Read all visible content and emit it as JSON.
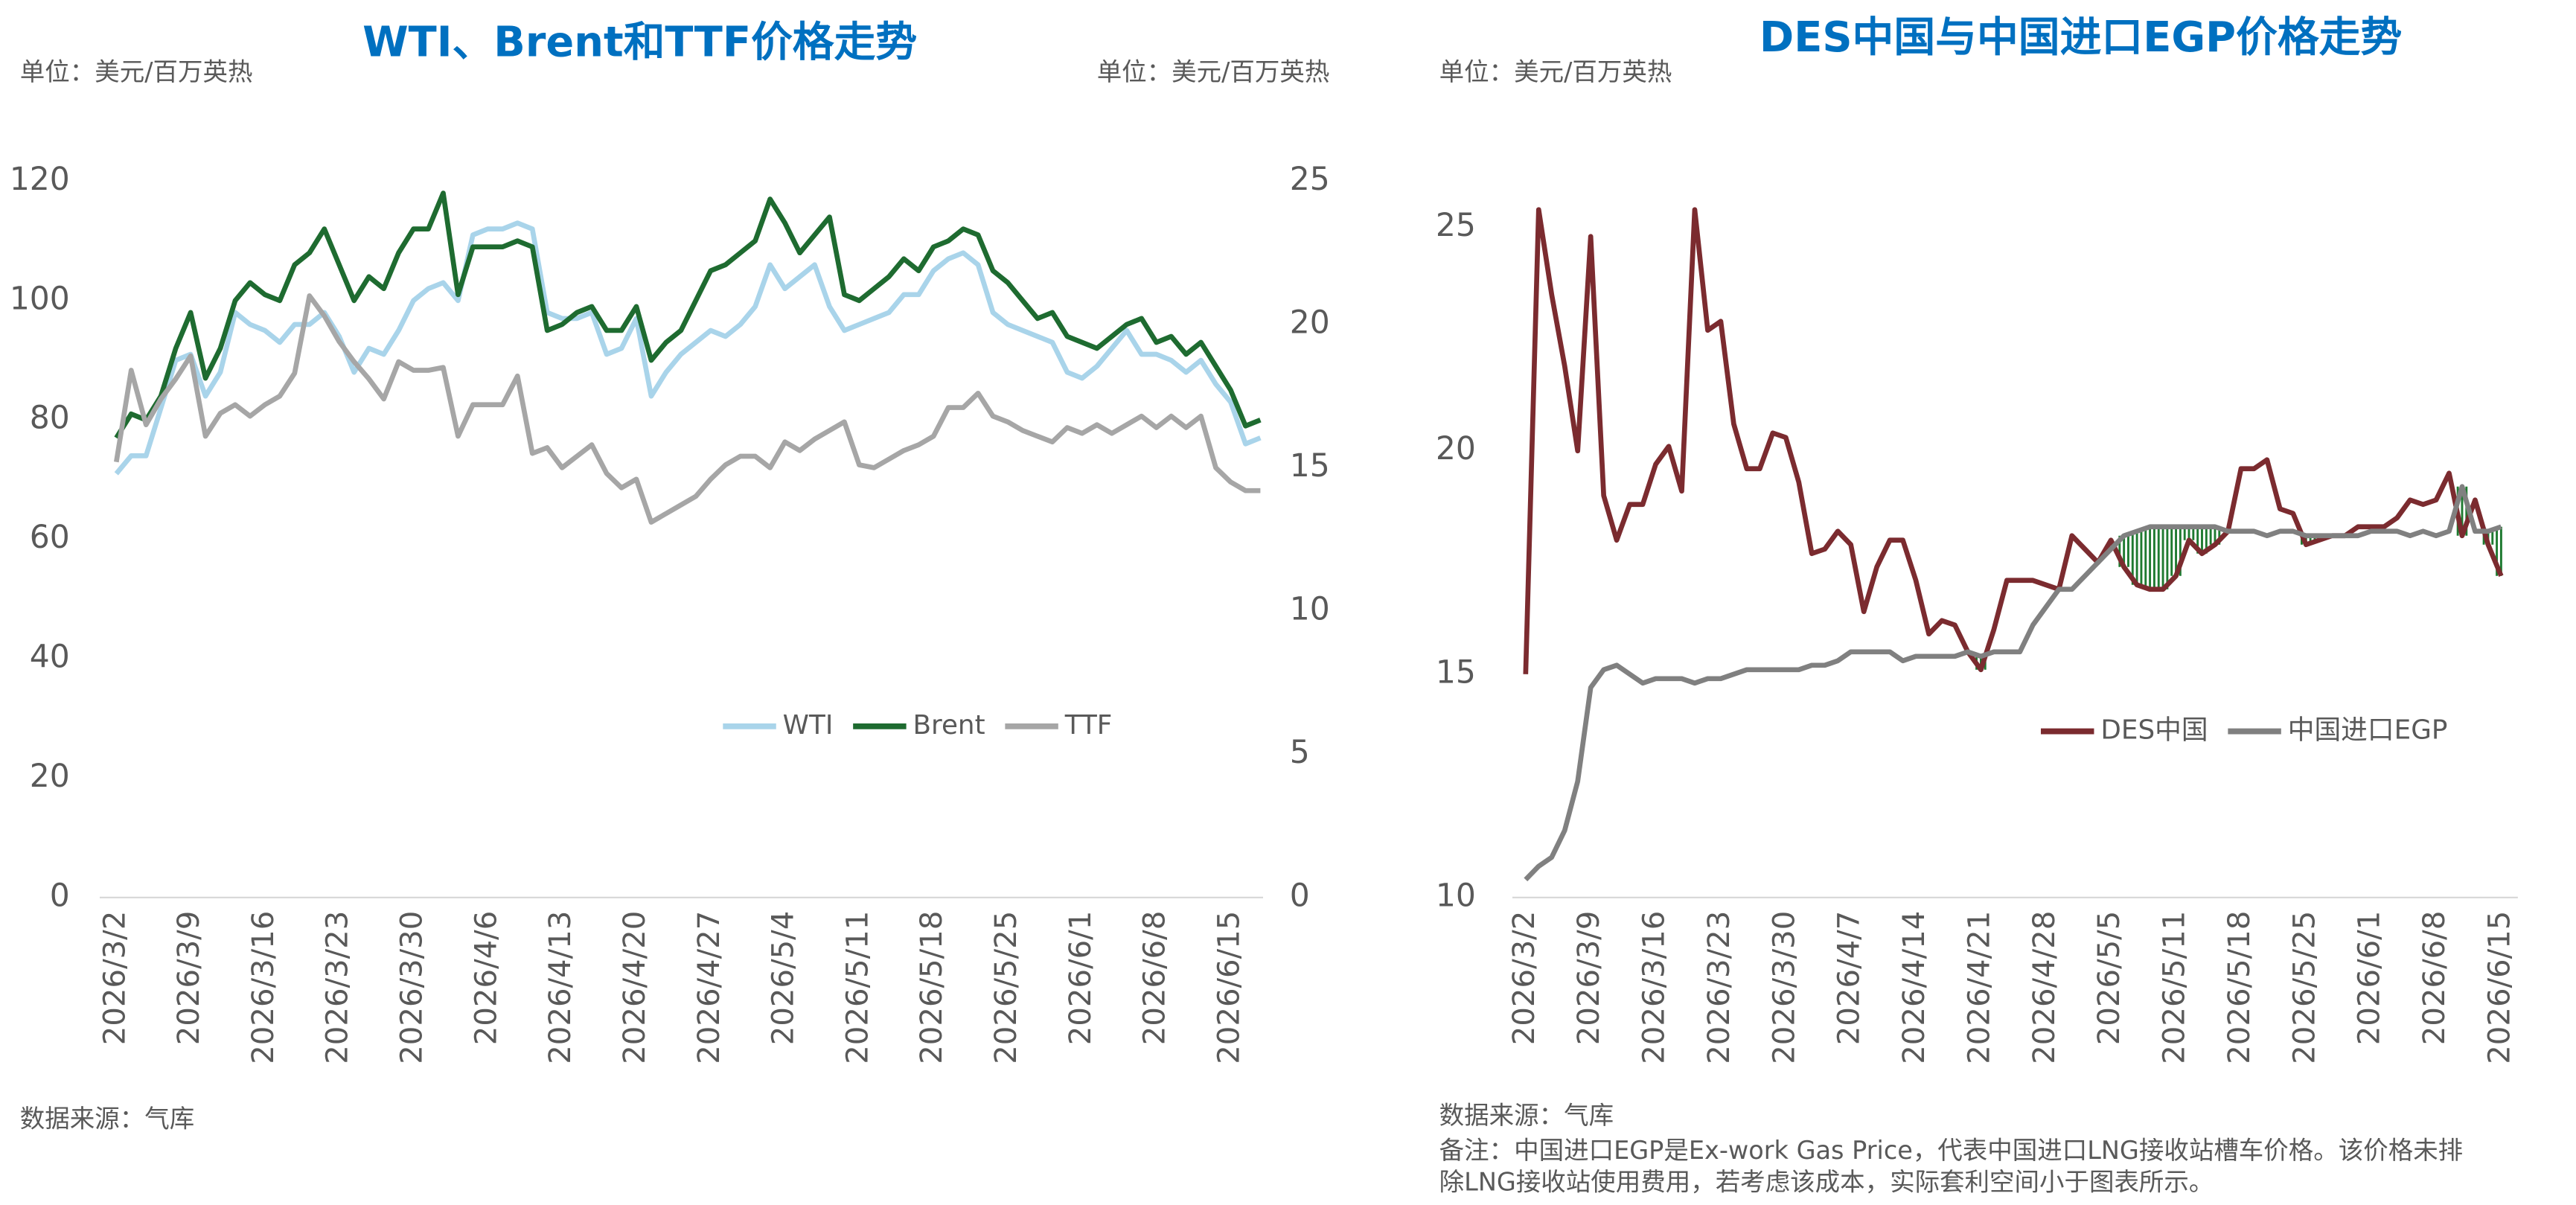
{
  "chart_data": [
    {
      "type": "line",
      "title": "WTI、Brent和TTF价格走势",
      "unit_left": "单位：美元/百万英热",
      "unit_right": "单位：美元/百万英热",
      "source": "数据来源：气库",
      "legend": "center",
      "categories": [
        "2026/3/2",
        null,
        null,
        null,
        null,
        "2026/3/9",
        null,
        null,
        null,
        null,
        "2026/3/16",
        null,
        null,
        null,
        null,
        "2026/3/23",
        null,
        null,
        null,
        null,
        "2026/3/30",
        null,
        null,
        null,
        null,
        "2026/4/6",
        null,
        null,
        null,
        null,
        "2026/4/13",
        null,
        null,
        null,
        null,
        "2026/4/20",
        null,
        null,
        null,
        null,
        "2026/4/27",
        null,
        null,
        null,
        null,
        "2026/5/4",
        null,
        null,
        null,
        null,
        "2026/5/11",
        null,
        null,
        null,
        null,
        "2026/5/18",
        null,
        null,
        null,
        null,
        "2026/5/25",
        null,
        null,
        null,
        null,
        "2026/6/1",
        null,
        null,
        null,
        null,
        "2026/6/8",
        null,
        null,
        null,
        null,
        "2026/6/15",
        null,
        null
      ],
      "ylim": [
        0,
        120
      ],
      "yticks": [
        0,
        20,
        40,
        60,
        80,
        100,
        120
      ],
      "y2lim": [
        0,
        25
      ],
      "y2ticks": [
        0,
        5,
        10,
        15,
        20,
        25
      ],
      "series": [
        {
          "name": "WTI",
          "color": "#a9d4ea",
          "values": [
            71,
            74,
            74,
            82,
            90,
            91,
            84,
            88,
            98,
            96,
            95,
            93,
            96,
            96,
            98,
            94,
            88,
            92,
            91,
            95,
            100,
            102,
            103,
            100,
            111,
            112,
            112,
            113,
            112,
            98,
            97,
            97,
            98,
            91,
            92,
            97,
            84,
            88,
            91,
            93,
            95,
            94,
            96,
            99,
            106,
            102,
            104,
            106,
            99,
            95,
            96,
            97,
            98,
            101,
            101,
            105,
            107,
            108,
            106,
            98,
            96,
            95,
            94,
            93,
            88,
            87,
            89,
            92,
            95,
            91,
            91,
            90,
            88,
            90,
            86,
            83,
            76,
            77
          ]
        },
        {
          "name": "Brent",
          "color": "#1e6b30",
          "values": [
            77,
            81,
            80,
            84,
            92,
            98,
            87,
            92,
            100,
            103,
            101,
            100,
            106,
            108,
            112,
            106,
            100,
            104,
            102,
            108,
            112,
            112,
            118,
            101,
            109,
            109,
            109,
            110,
            109,
            95,
            96,
            98,
            99,
            95,
            95,
            99,
            90,
            93,
            95,
            100,
            105,
            106,
            108,
            110,
            117,
            113,
            108,
            111,
            114,
            101,
            100,
            102,
            104,
            107,
            105,
            109,
            110,
            112,
            111,
            105,
            103,
            100,
            97,
            98,
            94,
            93,
            92,
            94,
            96,
            97,
            93,
            94,
            91,
            93,
            89,
            85,
            79,
            80
          ]
        },
        {
          "name": "TTF",
          "color": "#a6a6a6",
          "axis": "y2",
          "values": [
            15.2,
            18.4,
            16.5,
            17.4,
            18.1,
            18.9,
            16.1,
            16.9,
            17.2,
            16.8,
            17.2,
            17.5,
            18.3,
            21.0,
            20.3,
            19.4,
            18.7,
            18.1,
            17.4,
            18.7,
            18.4,
            18.4,
            18.5,
            16.1,
            17.2,
            17.2,
            17.2,
            18.2,
            15.5,
            15.7,
            15.0,
            15.4,
            15.8,
            14.8,
            14.3,
            14.6,
            13.1,
            13.4,
            13.7,
            14.0,
            14.6,
            15.1,
            15.4,
            15.4,
            15.0,
            15.9,
            15.6,
            16.0,
            16.3,
            16.6,
            15.1,
            15.0,
            15.3,
            15.6,
            15.8,
            16.1,
            17.1,
            17.1,
            17.6,
            16.8,
            16.6,
            16.3,
            16.1,
            15.9,
            16.4,
            16.2,
            16.5,
            16.2,
            16.5,
            16.8,
            16.4,
            16.8,
            16.4,
            16.8,
            15.0,
            14.5,
            14.2,
            14.2
          ]
        }
      ]
    },
    {
      "type": "line",
      "title": "DES中国与中国进口EGP价格走势",
      "unit_left": "单位：美元/百万英热",
      "source": "数据来源：气库",
      "note": [
        "备注：中国进口EGP是Ex-work Gas Price，代表中国进口LNG接收站槽车价格。该价格未排",
        "除LNG接收站使用费用，若考虑该成本，实际套利空间小于图表所示。"
      ],
      "legend": "center",
      "fill_between_color": "#1e7a30",
      "categories": [
        "2026/3/2",
        null,
        null,
        null,
        null,
        "2026/3/9",
        null,
        null,
        null,
        null,
        "2026/3/16",
        null,
        null,
        null,
        null,
        "2026/3/23",
        null,
        null,
        null,
        null,
        "2026/3/30",
        null,
        null,
        null,
        null,
        "2026/4/7",
        null,
        null,
        null,
        null,
        "2026/4/14",
        null,
        null,
        null,
        null,
        "2026/4/21",
        null,
        null,
        null,
        null,
        "2026/4/28",
        null,
        null,
        null,
        null,
        "2026/5/5",
        null,
        null,
        null,
        null,
        "2026/5/11",
        null,
        null,
        null,
        null,
        "2026/5/18",
        null,
        null,
        null,
        null,
        "2026/5/25",
        null,
        null,
        null,
        null,
        "2026/6/1",
        null,
        null,
        null,
        null,
        "2026/6/8",
        null,
        null,
        null,
        null,
        "2026/6/15"
      ],
      "ylim": [
        10,
        26
      ],
      "yticks": [
        10,
        15,
        20,
        25
      ],
      "series": [
        {
          "name": "DES中国",
          "color": "#7b2b2f",
          "values": [
            15.0,
            25.4,
            23.5,
            21.9,
            20.0,
            24.8,
            19.0,
            18.0,
            18.8,
            18.8,
            19.7,
            20.1,
            19.1,
            25.4,
            22.7,
            22.9,
            20.6,
            19.6,
            19.6,
            20.4,
            20.3,
            19.3,
            17.7,
            17.8,
            18.2,
            17.9,
            16.4,
            17.4,
            18.0,
            18.0,
            17.1,
            15.9,
            16.2,
            16.1,
            15.5,
            15.1,
            16.0,
            17.1,
            17.1,
            17.1,
            17.0,
            16.9,
            18.1,
            17.8,
            17.5,
            18.0,
            17.4,
            17.0,
            16.9,
            16.9,
            17.2,
            18.0,
            17.7,
            17.9,
            18.2,
            19.6,
            19.6,
            19.8,
            18.7,
            18.6,
            17.9,
            18.0,
            18.1,
            18.1,
            18.3,
            18.3,
            18.3,
            18.5,
            18.9,
            18.8,
            18.9,
            19.5,
            18.1,
            18.9,
            17.9,
            17.2
          ]
        },
        {
          "name": "中国进口EGP",
          "color": "#808080",
          "values": [
            10.4,
            10.7,
            10.9,
            11.5,
            12.6,
            14.7,
            15.1,
            15.2,
            15.0,
            14.8,
            14.9,
            14.9,
            14.9,
            14.8,
            14.9,
            14.9,
            15.0,
            15.1,
            15.1,
            15.1,
            15.1,
            15.1,
            15.2,
            15.2,
            15.3,
            15.5,
            15.5,
            15.5,
            15.5,
            15.3,
            15.4,
            15.4,
            15.4,
            15.4,
            15.5,
            15.4,
            15.5,
            15.5,
            15.5,
            16.1,
            16.5,
            16.9,
            16.9,
            17.2,
            17.5,
            17.8,
            18.1,
            18.2,
            18.3,
            18.3,
            18.3,
            18.3,
            18.3,
            18.3,
            18.2,
            18.2,
            18.2,
            18.1,
            18.2,
            18.2,
            18.1,
            18.1,
            18.1,
            18.1,
            18.1,
            18.2,
            18.2,
            18.2,
            18.1,
            18.2,
            18.1,
            18.2,
            19.2,
            18.2,
            18.2,
            18.3
          ]
        }
      ]
    }
  ]
}
